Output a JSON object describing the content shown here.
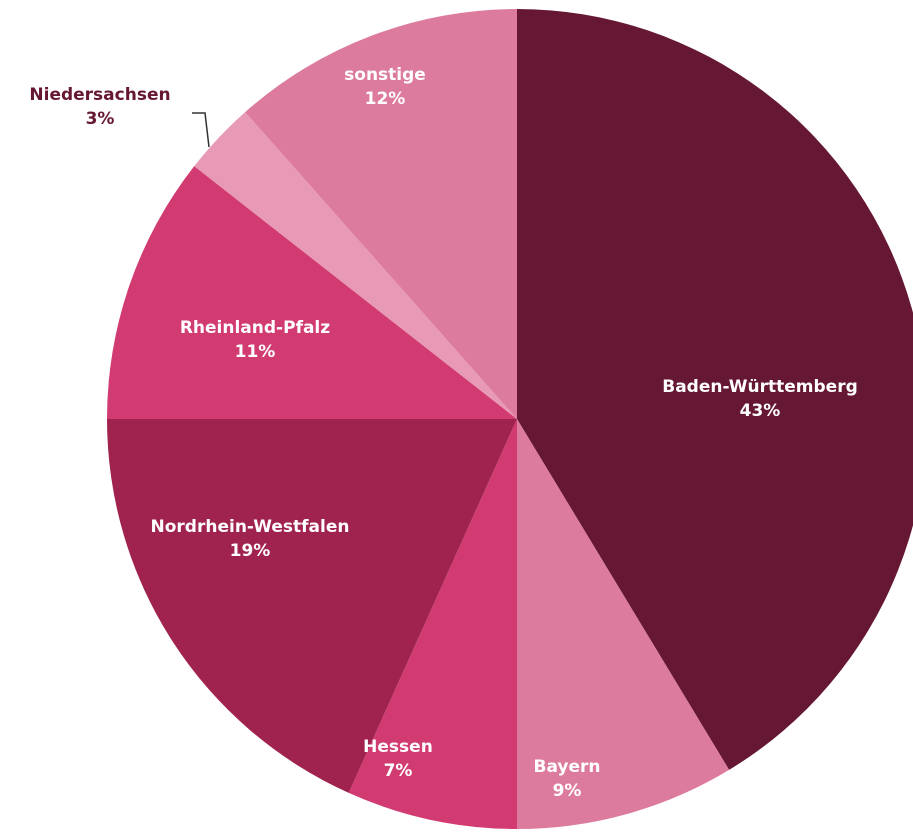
{
  "chart_data": {
    "type": "pie",
    "categories": [
      "Baden-Württemberg",
      "Bayern",
      "Hessen",
      "Nordrhein-Westfalen",
      "Rheinland-Pfalz",
      "Niedersachsen",
      "sonstige"
    ],
    "values": [
      43,
      9,
      7,
      19,
      11,
      3,
      12
    ],
    "value_labels": [
      "43%",
      "9%",
      "7%",
      "19%",
      "11%",
      "3%",
      "12%"
    ],
    "colors": [
      "#651733",
      "#dc7b9d",
      "#d13b72",
      "#a0234f",
      "#d13b72",
      "#e899b5",
      "#dc7b9d"
    ]
  }
}
